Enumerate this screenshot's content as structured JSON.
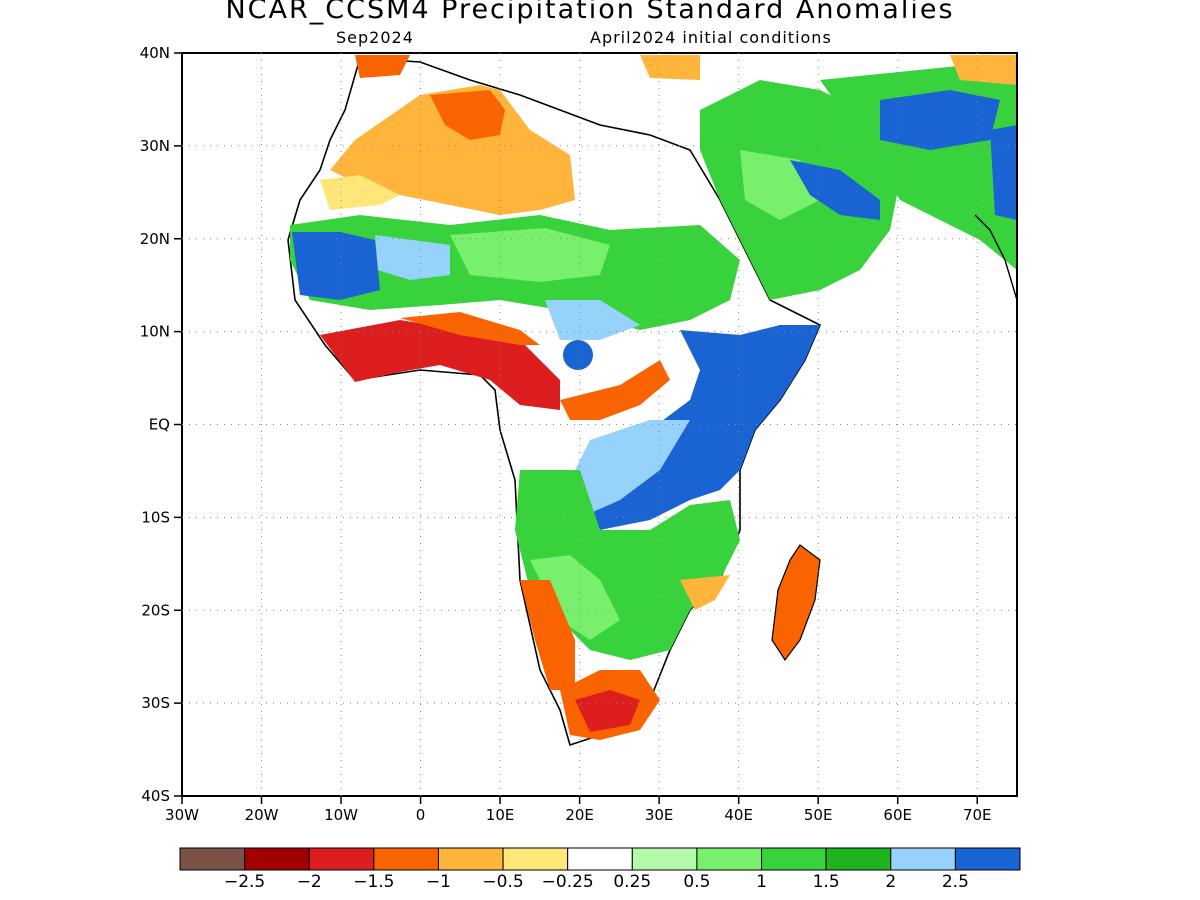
{
  "header": {
    "title": "NCAR_CCSM4 Precipitation Standard Anomalies",
    "target_month": "Sep2024",
    "init_conditions": "April2024 initial conditions"
  },
  "map": {
    "lat_range": [
      -40,
      40
    ],
    "lon_range": [
      -30,
      75
    ],
    "lat_ticks": [
      "40N",
      "30N",
      "20N",
      "10N",
      "EQ",
      "10S",
      "20S",
      "30S",
      "40S"
    ],
    "lon_ticks": [
      "30W",
      "20W",
      "10W",
      "0",
      "10E",
      "20E",
      "30E",
      "40E",
      "50E",
      "60E",
      "70E"
    ],
    "grid": true
  },
  "colorbar": {
    "colors": [
      "#7a5246",
      "#a30000",
      "#dc1e1e",
      "#fa6400",
      "#ffb43c",
      "#ffe678",
      "#ffffff",
      "#b4faaa",
      "#78f06e",
      "#37d23c",
      "#1eb41e",
      "#96d2fa",
      "#1964d2"
    ],
    "labels": [
      "−2.5",
      "−2",
      "−1.5",
      "−1",
      "−0.5",
      "−0.25",
      "0.25",
      "0.5",
      "1",
      "1.5",
      "2",
      "2.5"
    ]
  }
}
